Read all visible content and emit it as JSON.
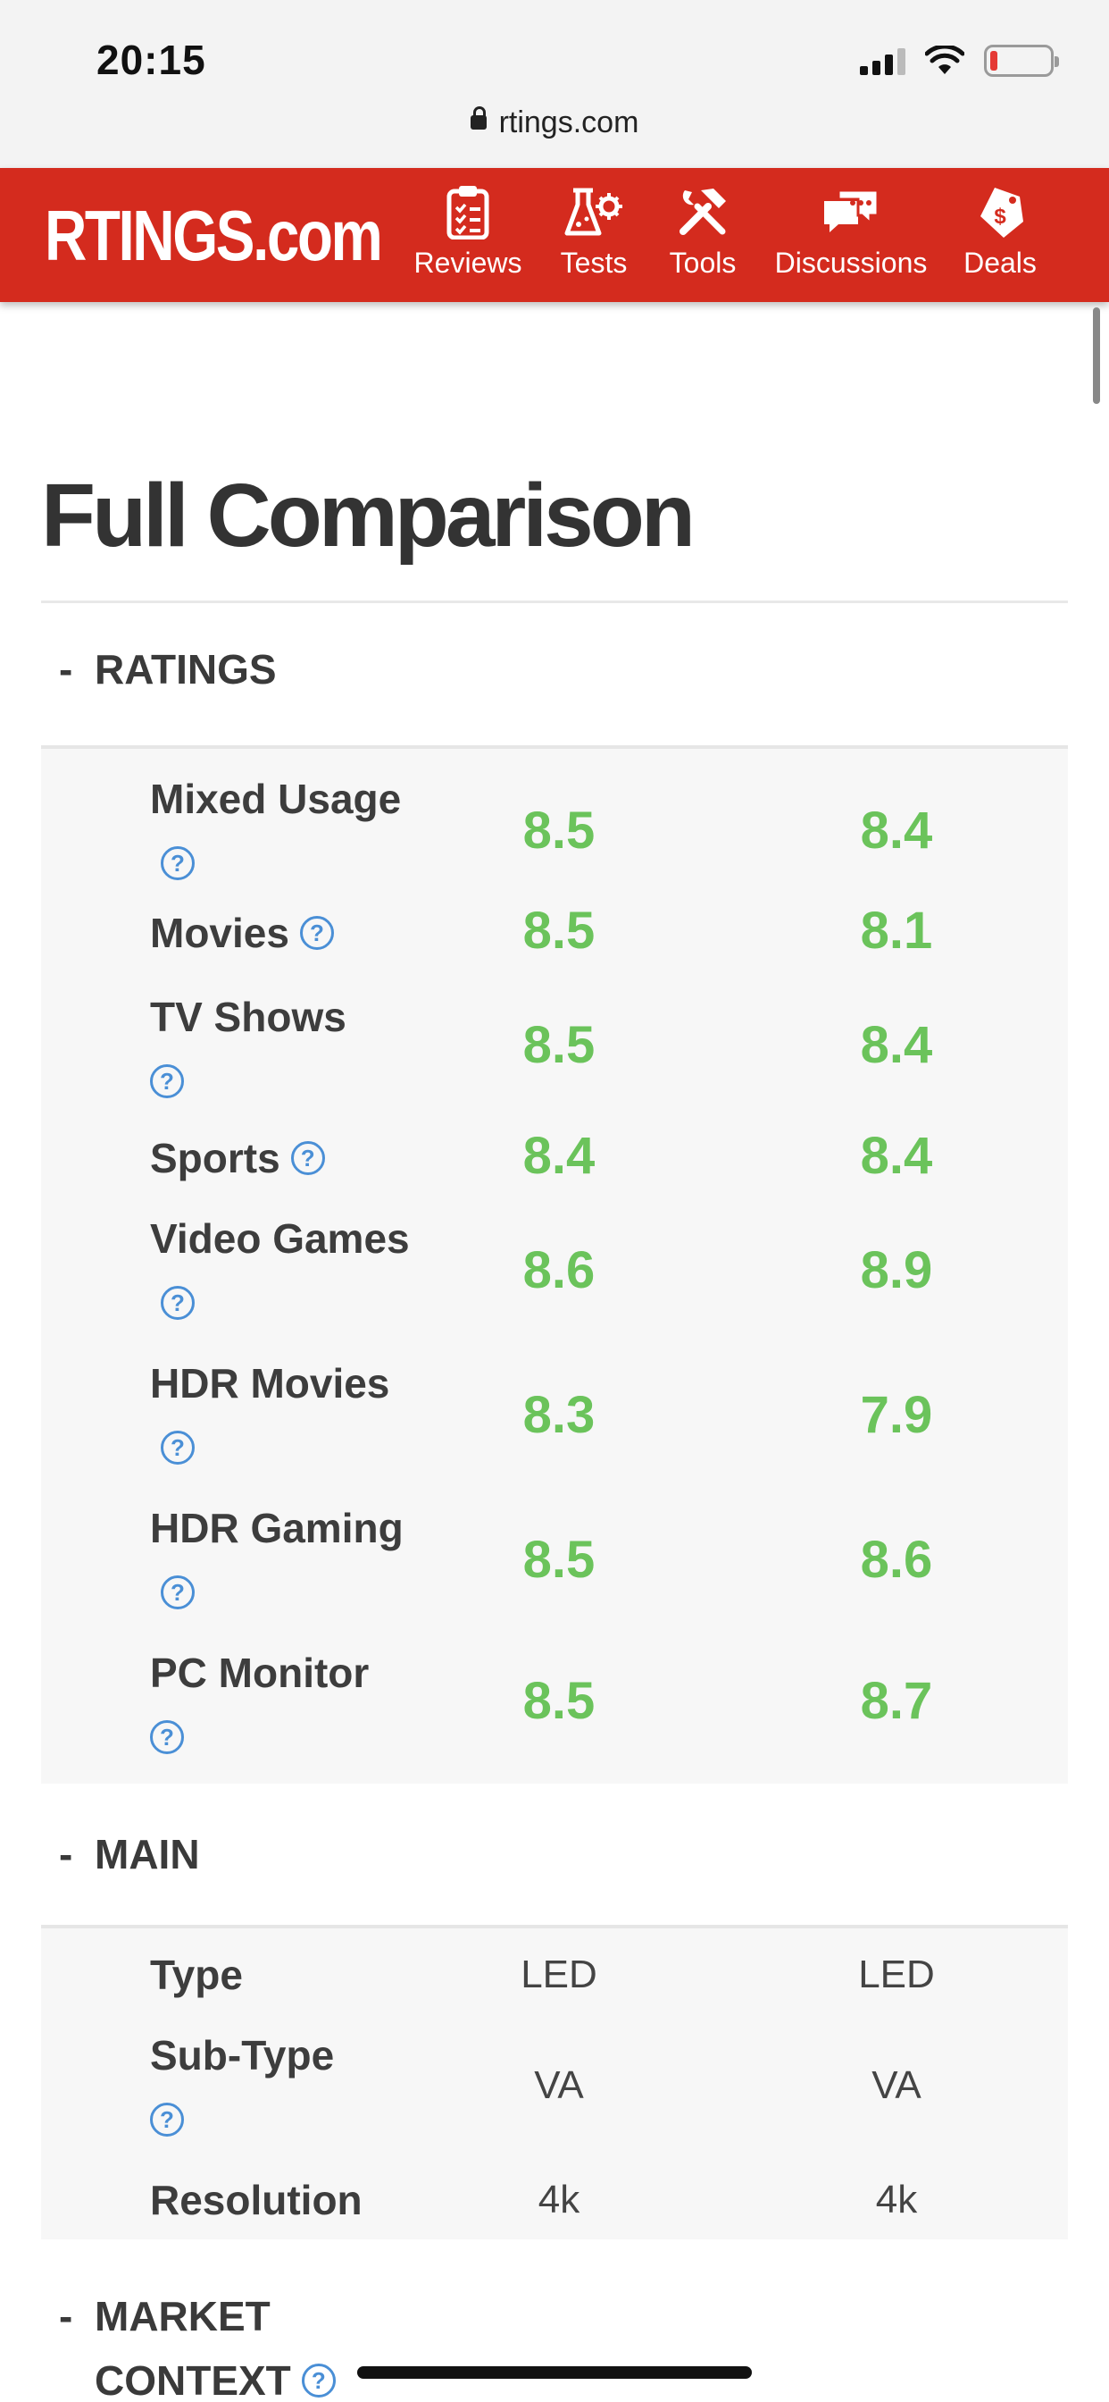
{
  "status_bar": {
    "time": "20:15"
  },
  "browser": {
    "url": "rtings.com"
  },
  "site": {
    "logo": "RTINGS.com",
    "nav": [
      {
        "label": "Reviews",
        "icon": "clipboard-icon"
      },
      {
        "label": "Tests",
        "icon": "flask-gear-icon"
      },
      {
        "label": "Tools",
        "icon": "tools-icon"
      },
      {
        "label": "Discussions",
        "icon": "chat-bubbles-icon"
      },
      {
        "label": "Deals",
        "icon": "price-tag-icon"
      }
    ]
  },
  "page": {
    "title": "Full Comparison"
  },
  "colors": {
    "header_red": "#d42b1e",
    "score_green": "#6bc35b",
    "help_blue": "#4a8fd6"
  },
  "sections": {
    "ratings": {
      "label": "RATINGS",
      "toggle": "-",
      "rows": [
        {
          "name": "Mixed Usage",
          "a": "8.5",
          "b": "8.4"
        },
        {
          "name": "Movies",
          "a": "8.5",
          "b": "8.1"
        },
        {
          "name": "TV Shows",
          "a": "8.5",
          "b": "8.4"
        },
        {
          "name": "Sports",
          "a": "8.4",
          "b": "8.4"
        },
        {
          "name": "Video Games",
          "a": "8.6",
          "b": "8.9"
        },
        {
          "name": "HDR Movies",
          "a": "8.3",
          "b": "7.9"
        },
        {
          "name": "HDR Gaming",
          "a": "8.5",
          "b": "8.6"
        },
        {
          "name": "PC Monitor",
          "a": "8.5",
          "b": "8.7"
        }
      ]
    },
    "main": {
      "label": "MAIN",
      "toggle": "-",
      "rows": [
        {
          "name": "Type",
          "a": "LED",
          "b": "LED"
        },
        {
          "name": "Sub-Type",
          "a": "VA",
          "b": "VA"
        },
        {
          "name": "Resolution",
          "a": "4k",
          "b": "4k"
        }
      ]
    },
    "market_context": {
      "label": "MARKET CONTEXT",
      "toggle": "-"
    }
  },
  "help_glyph": "?"
}
